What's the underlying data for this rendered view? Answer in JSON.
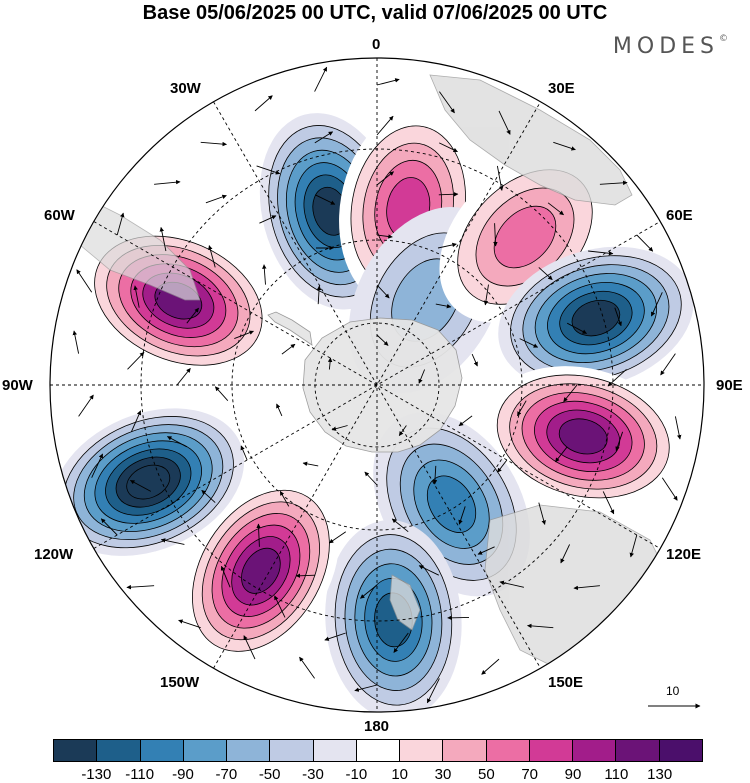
{
  "title": "Base 05/06/2025 00 UTC, valid 07/06/2025 00 UTC",
  "brand": "MODES",
  "brand_mark": "©",
  "longitude_labels": {
    "lon_0": "0",
    "lon_30e": "30E",
    "lon_60e": "60E",
    "lon_90e": "90E",
    "lon_120e": "120E",
    "lon_150e": "150E",
    "lon_180": "180",
    "lon_150w": "150W",
    "lon_120w": "120W",
    "lon_90w": "90W",
    "lon_60w": "60W",
    "lon_30w": "30W"
  },
  "reference_vector_label": "10",
  "colorbar": {
    "colors": [
      "#1b3a57",
      "#1e5f8a",
      "#3380b4",
      "#5b9dc9",
      "#8eb4d8",
      "#bfcbe4",
      "#e4e4f0",
      "#ffffff",
      "#fad6dc",
      "#f4a9bd",
      "#ec6ea4",
      "#d23a96",
      "#a21d8a",
      "#6b1377",
      "#4b0f6b"
    ],
    "tick_labels": [
      "-130",
      "-110",
      "-90",
      "-70",
      "-50",
      "-30",
      "-10",
      "10",
      "30",
      "50",
      "70",
      "90",
      "110",
      "130"
    ]
  },
  "anomaly_centers": [
    {
      "lon": 345,
      "colat_frac": 0.55,
      "value": -110
    },
    {
      "lon": 10,
      "colat_frac": 0.55,
      "value": 70
    },
    {
      "lon": 30,
      "colat_frac": 0.3,
      "value": -30
    },
    {
      "lon": 45,
      "colat_frac": 0.64,
      "value": 50
    },
    {
      "lon": 73,
      "colat_frac": 0.7,
      "value": -110
    },
    {
      "lon": 104,
      "colat_frac": 0.65,
      "value": 110
    },
    {
      "lon": 148,
      "colat_frac": 0.43,
      "value": -70
    },
    {
      "lon": 176,
      "colat_frac": 0.72,
      "value": -90
    },
    {
      "lon": 212,
      "colat_frac": 0.67,
      "value": 110
    },
    {
      "lon": 247,
      "colat_frac": 0.76,
      "value": -130
    },
    {
      "lon": 293,
      "colat_frac": 0.66,
      "value": 110
    }
  ]
}
